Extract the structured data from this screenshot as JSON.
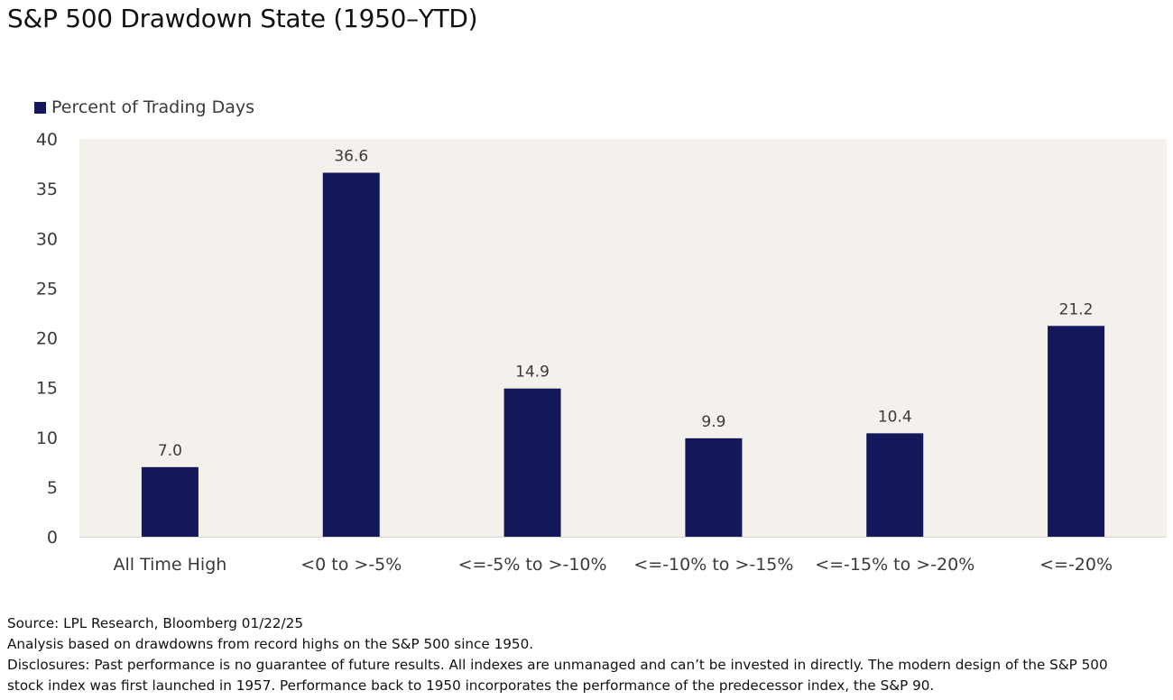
{
  "title": "S&P 500 Drawdown State (1950–YTD)",
  "colors": {
    "bar": "#14185a",
    "plot_bg": "#f4f1ec",
    "text": "#3a3a3a"
  },
  "chart_data": {
    "type": "bar",
    "title": "S&P 500 Drawdown State (1950–YTD)",
    "categories": [
      "All Time High",
      "<0 to >-5%",
      "<=-5% to >-10%",
      "<=-10% to >-15%",
      "<=-15% to >-20%",
      "<=-20%"
    ],
    "series": [
      {
        "name": "Percent of Trading Days",
        "values": [
          7.0,
          36.6,
          14.9,
          9.9,
          10.4,
          21.2
        ]
      }
    ],
    "data_labels": [
      "7.0",
      "36.6",
      "14.9",
      "9.9",
      "10.4",
      "21.2"
    ],
    "ylim": [
      0,
      40
    ],
    "yticks": [
      0,
      5,
      10,
      15,
      20,
      25,
      30,
      35,
      40
    ],
    "legend_position": "top-left",
    "grid": false
  },
  "notes": {
    "source": "Source: LPL Research, Bloomberg 01/22/25",
    "analysis": "Analysis based on drawdowns from record highs on the S&P 500 since 1950.",
    "disclosure_line1": "Disclosures: Past performance is no guarantee of future results. All indexes are unmanaged and can’t be invested in directly. The modern design of the S&P 500",
    "disclosure_line2": "stock index was first launched in 1957. Performance back to 1950 incorporates the performance of the predecessor index, the S&P 90."
  }
}
